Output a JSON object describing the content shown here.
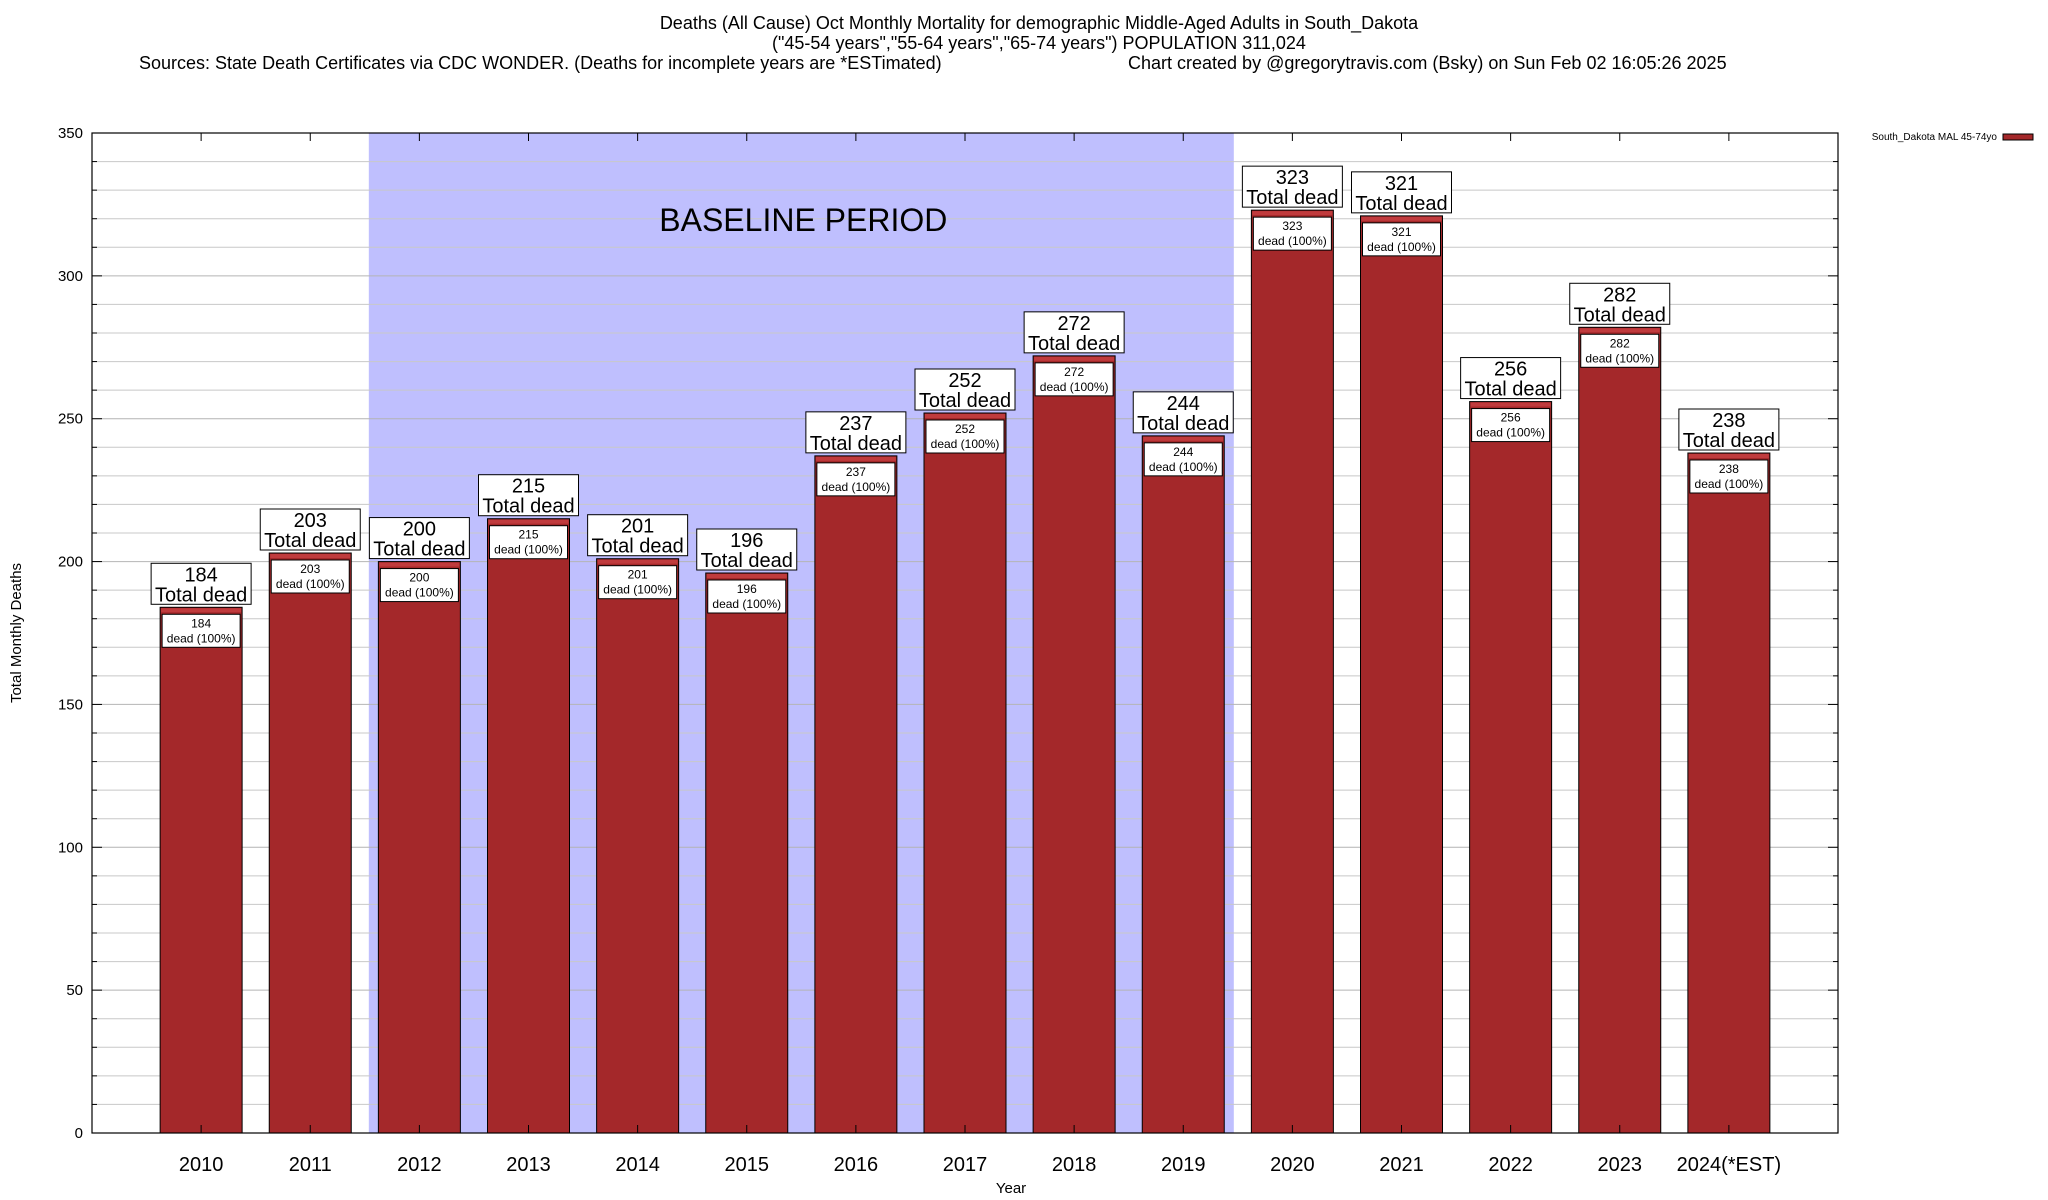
{
  "header": {
    "title_line1": "Deaths (All Cause) Oct Monthly Mortality for demographic Middle-Aged Adults in South_Dakota",
    "title_line2": "(\"45-54 years\",\"55-64 years\",\"65-74 years\") POPULATION 311,024",
    "sources": "Sources: State Death Certificates via CDC WONDER. (Deaths for incomplete years are *ESTimated)",
    "credit": "Chart created by @gregorytravis.com (Bsky) on Sun Feb 02 16:05:26 2025"
  },
  "colors": {
    "bar": "#a4282a",
    "bar_top": "#c03b3d",
    "baseline_band": "#bfbffe",
    "grid": "#c8c8c8"
  },
  "chart_data": {
    "type": "bar",
    "categories": [
      "2010",
      "2011",
      "2012",
      "2013",
      "2014",
      "2015",
      "2016",
      "2017",
      "2018",
      "2019",
      "2020",
      "2021",
      "2022",
      "2023",
      "2024(*EST)"
    ],
    "series": [
      {
        "name": "South_Dakota MAL 45-74yo",
        "values": [
          184,
          203,
          200,
          215,
          201,
          196,
          237,
          252,
          272,
          244,
          323,
          321,
          256,
          282,
          238
        ]
      }
    ],
    "xlabel": "Year",
    "ylabel": "Total Monthly Deaths",
    "ylim": [
      0,
      350
    ],
    "yticks": [
      0,
      50,
      100,
      150,
      200,
      250,
      300,
      350
    ],
    "grid": true,
    "legend_position": "top-right",
    "shaded_region": {
      "label": "BASELINE PERIOD",
      "from": "2012",
      "to": "2019"
    },
    "bar_label_outer_suffix": "Total dead",
    "bar_label_inner_suffix": "dead (100%)"
  }
}
